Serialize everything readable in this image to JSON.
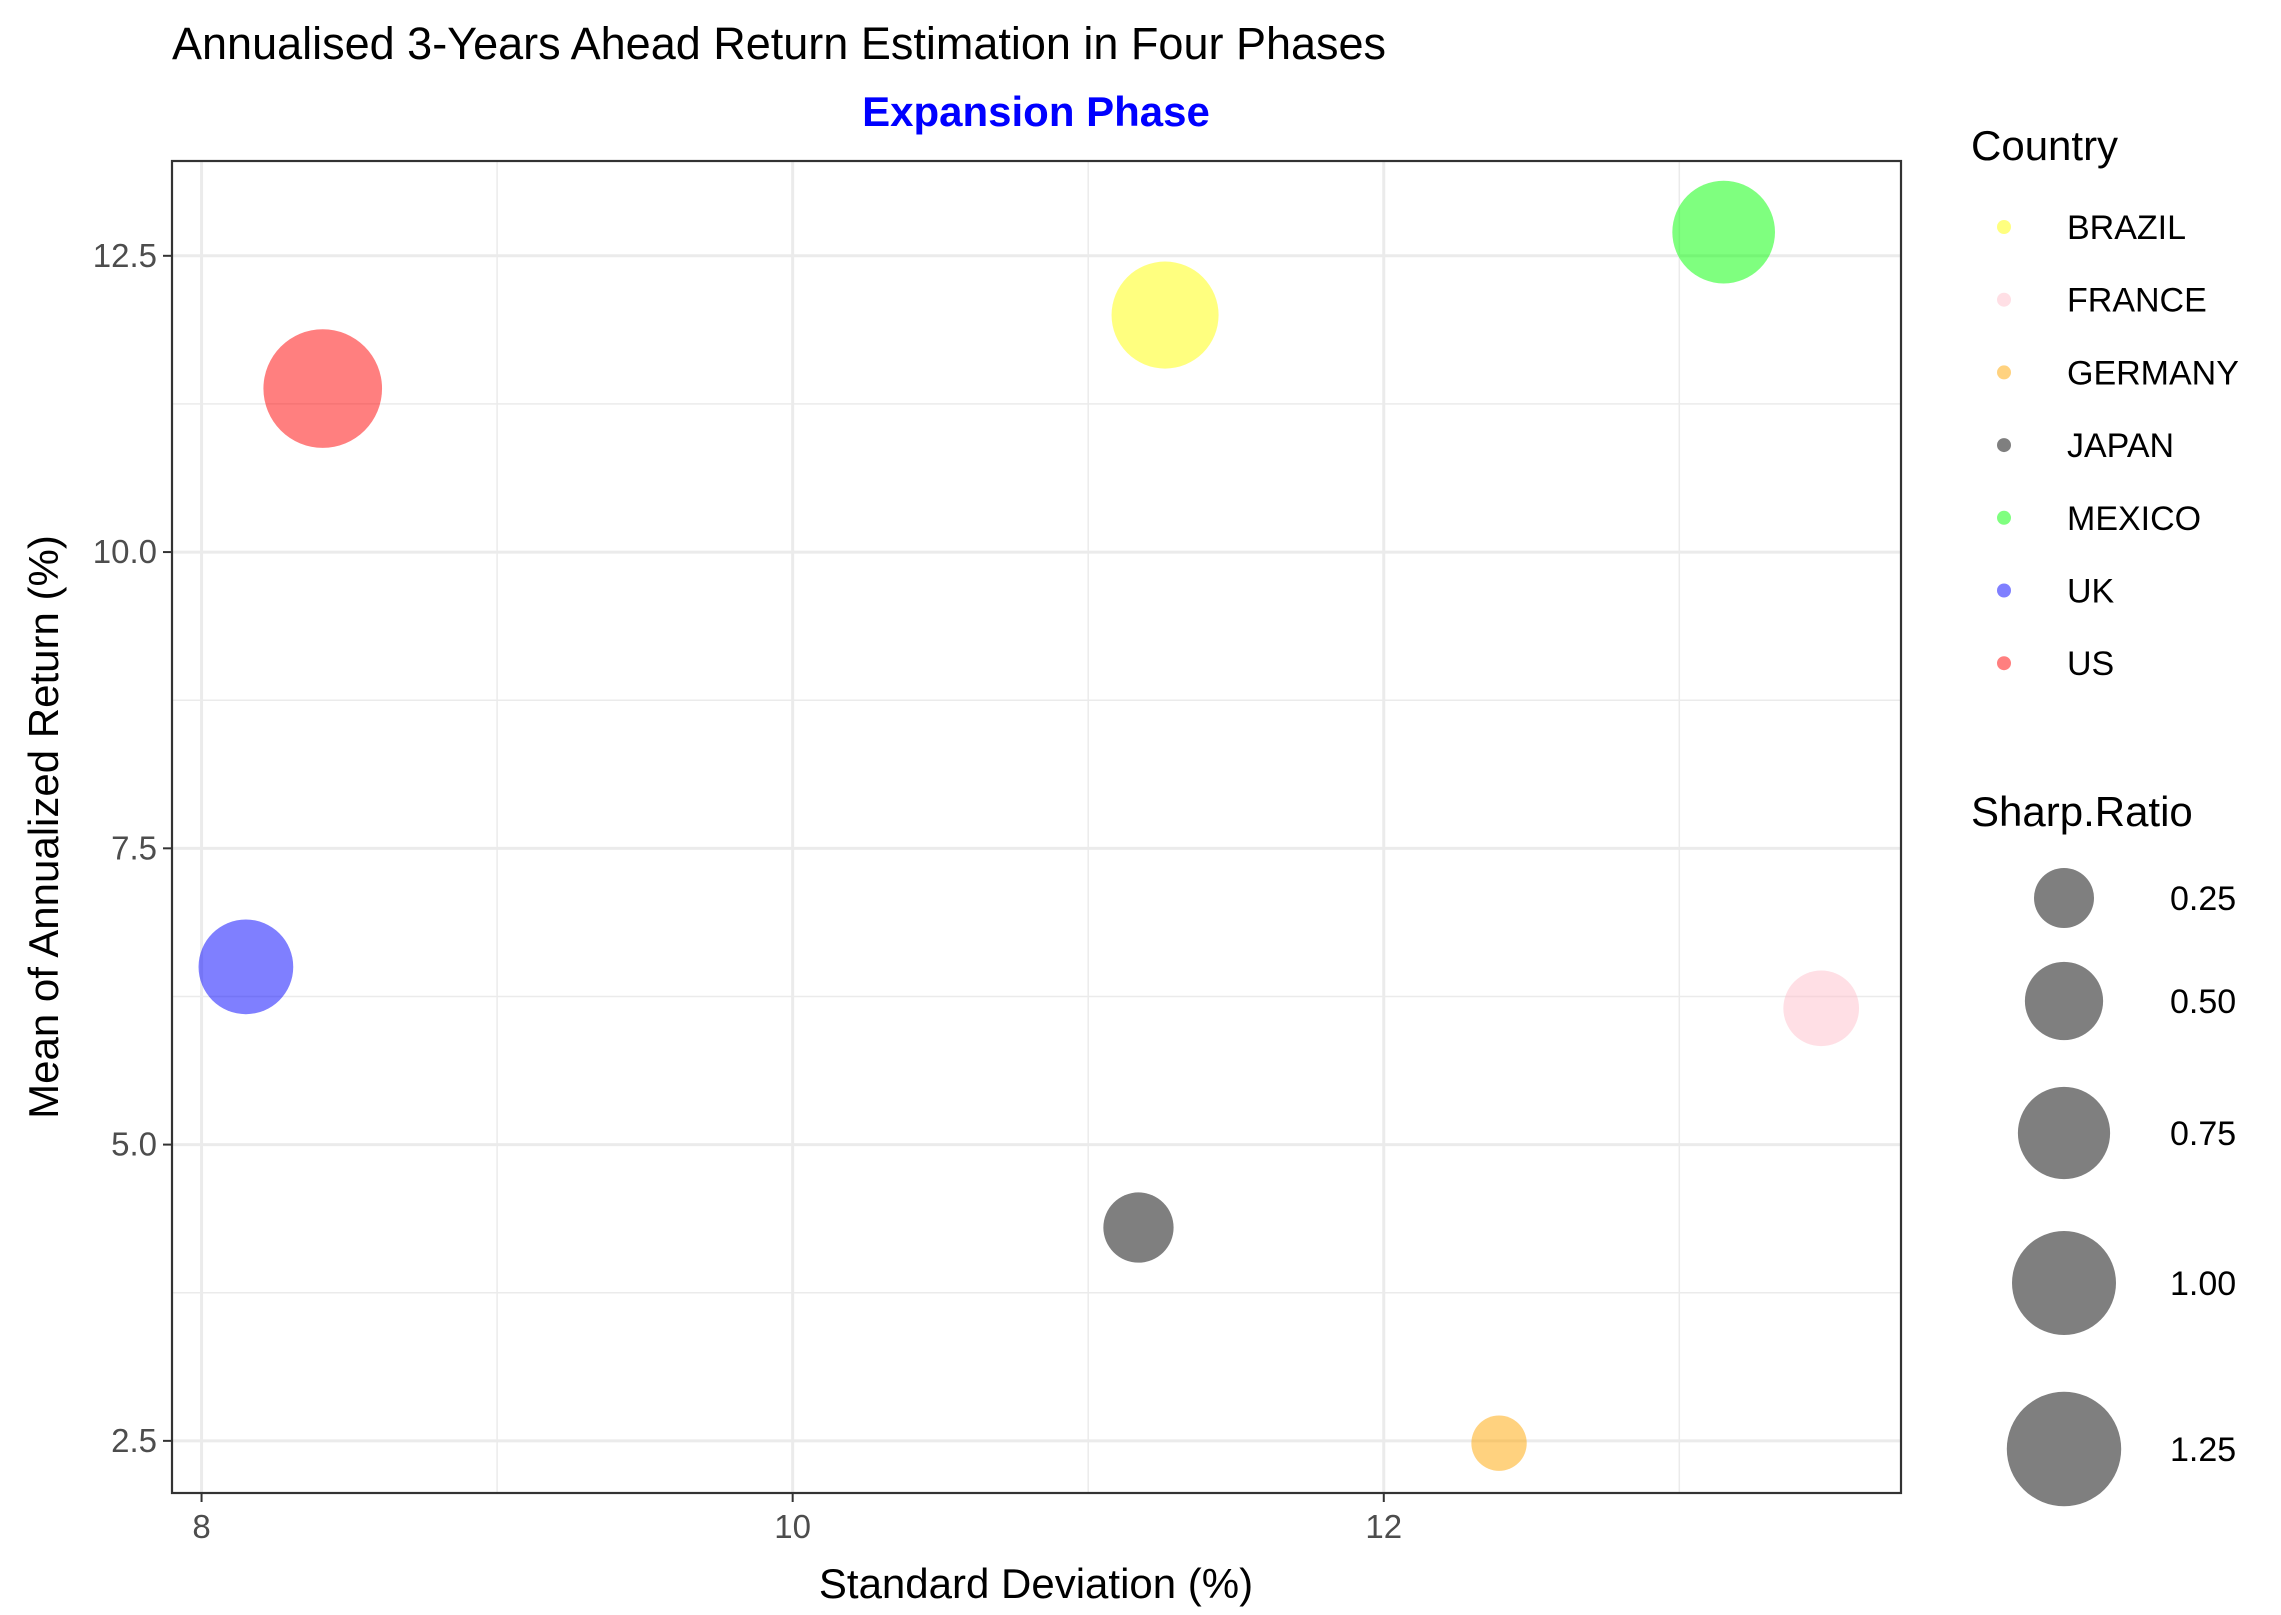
{
  "chart_data": {
    "type": "scatter",
    "title": "Annualised 3-Years Ahead Return Estimation in Four Phases",
    "subtitle": "Expansion Phase",
    "subtitle_color": "#0000ff",
    "xlabel": "Standard Deviation (%)",
    "ylabel": "Mean of Annualized Return (%)",
    "xlim": [
      7.9,
      13.75
    ],
    "ylim": [
      2.06,
      13.3
    ],
    "x_ticks": [
      8,
      10,
      12
    ],
    "x_tick_labels": [
      "8",
      "10",
      "12"
    ],
    "y_ticks": [
      2.5,
      5.0,
      7.5,
      10.0,
      12.5
    ],
    "y_tick_labels": [
      "2.5",
      "5.0",
      "7.5",
      "10.0",
      "12.5"
    ],
    "grid": true,
    "point_alpha": 0.5,
    "legend_position": "right",
    "color_legend": {
      "title": "Country",
      "entries": [
        {
          "label": "BRAZIL",
          "color": "#ffff00"
        },
        {
          "label": "FRANCE",
          "color": "#ffc0cb"
        },
        {
          "label": "GERMANY",
          "color": "#ffa500"
        },
        {
          "label": "JAPAN",
          "color": "#000000"
        },
        {
          "label": "MEXICO",
          "color": "#00ff00"
        },
        {
          "label": "UK",
          "color": "#0000ff"
        },
        {
          "label": "US",
          "color": "#ff0000"
        }
      ]
    },
    "size_legend": {
      "title": "Sharp.Ratio",
      "entries": [
        {
          "label": "0.25",
          "value": 0.25
        },
        {
          "label": "0.50",
          "value": 0.5
        },
        {
          "label": "0.75",
          "value": 0.75
        },
        {
          "label": "1.00",
          "value": 1.0
        },
        {
          "label": "1.25",
          "value": 1.25
        }
      ]
    },
    "points": [
      {
        "country": "BRAZIL",
        "x": 11.26,
        "y": 12.0,
        "sharpe": 1.07
      },
      {
        "country": "FRANCE",
        "x": 13.48,
        "y": 6.15,
        "sharpe": 0.46
      },
      {
        "country": "GERMANY",
        "x": 12.39,
        "y": 2.48,
        "sharpe": 0.2
      },
      {
        "country": "JAPAN",
        "x": 11.17,
        "y": 4.3,
        "sharpe": 0.38
      },
      {
        "country": "MEXICO",
        "x": 13.15,
        "y": 12.7,
        "sharpe": 0.97
      },
      {
        "country": "UK",
        "x": 8.15,
        "y": 6.5,
        "sharpe": 0.8
      },
      {
        "country": "US",
        "x": 8.41,
        "y": 11.38,
        "sharpe": 1.36
      }
    ]
  }
}
